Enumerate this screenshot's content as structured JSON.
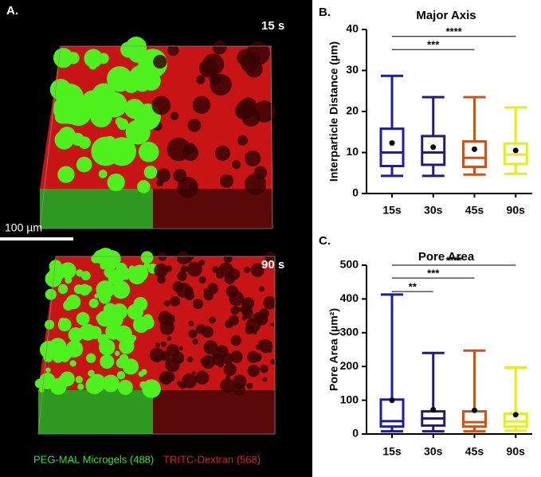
{
  "panel_a": {
    "panel_label": "A.",
    "time_top": "15 s",
    "time_bottom": "90 s",
    "scale_bar": "100 µm",
    "legend": [
      {
        "name": "PEG-MAL Microgels (488)",
        "color": "#33e61a"
      },
      {
        "name": "TRITC-Dextran (568)",
        "color": "#d81e1e"
      }
    ]
  },
  "chart_data": [
    {
      "type": "box",
      "panel_label": "B.",
      "title": "Major Axis",
      "ylabel": "Interparticle Distance (µm)",
      "categories": [
        "15s",
        "30s",
        "45s",
        "90s"
      ],
      "ylim": [
        0,
        40
      ],
      "yticks": [
        0,
        10,
        20,
        30,
        40
      ],
      "boxes": [
        {
          "color": "#1c1ca8",
          "min": 4.3,
          "q1": 6.7,
          "median": 10,
          "q3": 15.8,
          "max": 28.7,
          "mean": 12.3
        },
        {
          "color": "#231d72",
          "min": 4.3,
          "q1": 7,
          "median": 10,
          "q3": 14,
          "max": 23.5,
          "mean": 11.3
        },
        {
          "color": "#cc521c",
          "min": 4.6,
          "q1": 6.5,
          "median": 8.7,
          "q3": 12.7,
          "max": 23.5,
          "mean": 10.8
        },
        {
          "color": "#e3ee1e",
          "min": 4.8,
          "q1": 7.2,
          "median": 9.5,
          "q3": 12.2,
          "max": 21,
          "mean": 10.5
        }
      ],
      "annotations": [
        {
          "label": "***",
          "from": "15s",
          "to": "45s",
          "y": 35.1
        },
        {
          "label": "****",
          "from": "15s",
          "to": "90s",
          "y": 38.3
        }
      ]
    },
    {
      "type": "box",
      "panel_label": "C.",
      "title": "Pore Area",
      "ylabel": "Pore  Area (µm²)",
      "categories": [
        "15s",
        "30s",
        "45s",
        "90s"
      ],
      "ylim": [
        0,
        500
      ],
      "yticks": [
        0,
        100,
        200,
        300,
        400,
        500
      ],
      "boxes": [
        {
          "color": "#1c1ca8",
          "min": 8,
          "q1": 22,
          "median": 38,
          "q3": 102,
          "max": 413,
          "mean": 100
        },
        {
          "color": "#231d72",
          "min": 8,
          "q1": 25,
          "median": 46,
          "q3": 67,
          "max": 240,
          "mean": 72
        },
        {
          "color": "#cc521c",
          "min": 8,
          "q1": 22,
          "median": 35,
          "q3": 67,
          "max": 247,
          "mean": 70
        },
        {
          "color": "#e3ee1e",
          "min": 10,
          "q1": 22,
          "median": 37,
          "q3": 60,
          "max": 197,
          "mean": 57
        }
      ],
      "annotations": [
        {
          "label": "**",
          "from": "15s",
          "to": "30s",
          "y": 422
        },
        {
          "label": "***",
          "from": "15s",
          "to": "45s",
          "y": 462
        },
        {
          "label": "****",
          "from": "15s",
          "to": "90s",
          "y": 500
        }
      ]
    }
  ]
}
